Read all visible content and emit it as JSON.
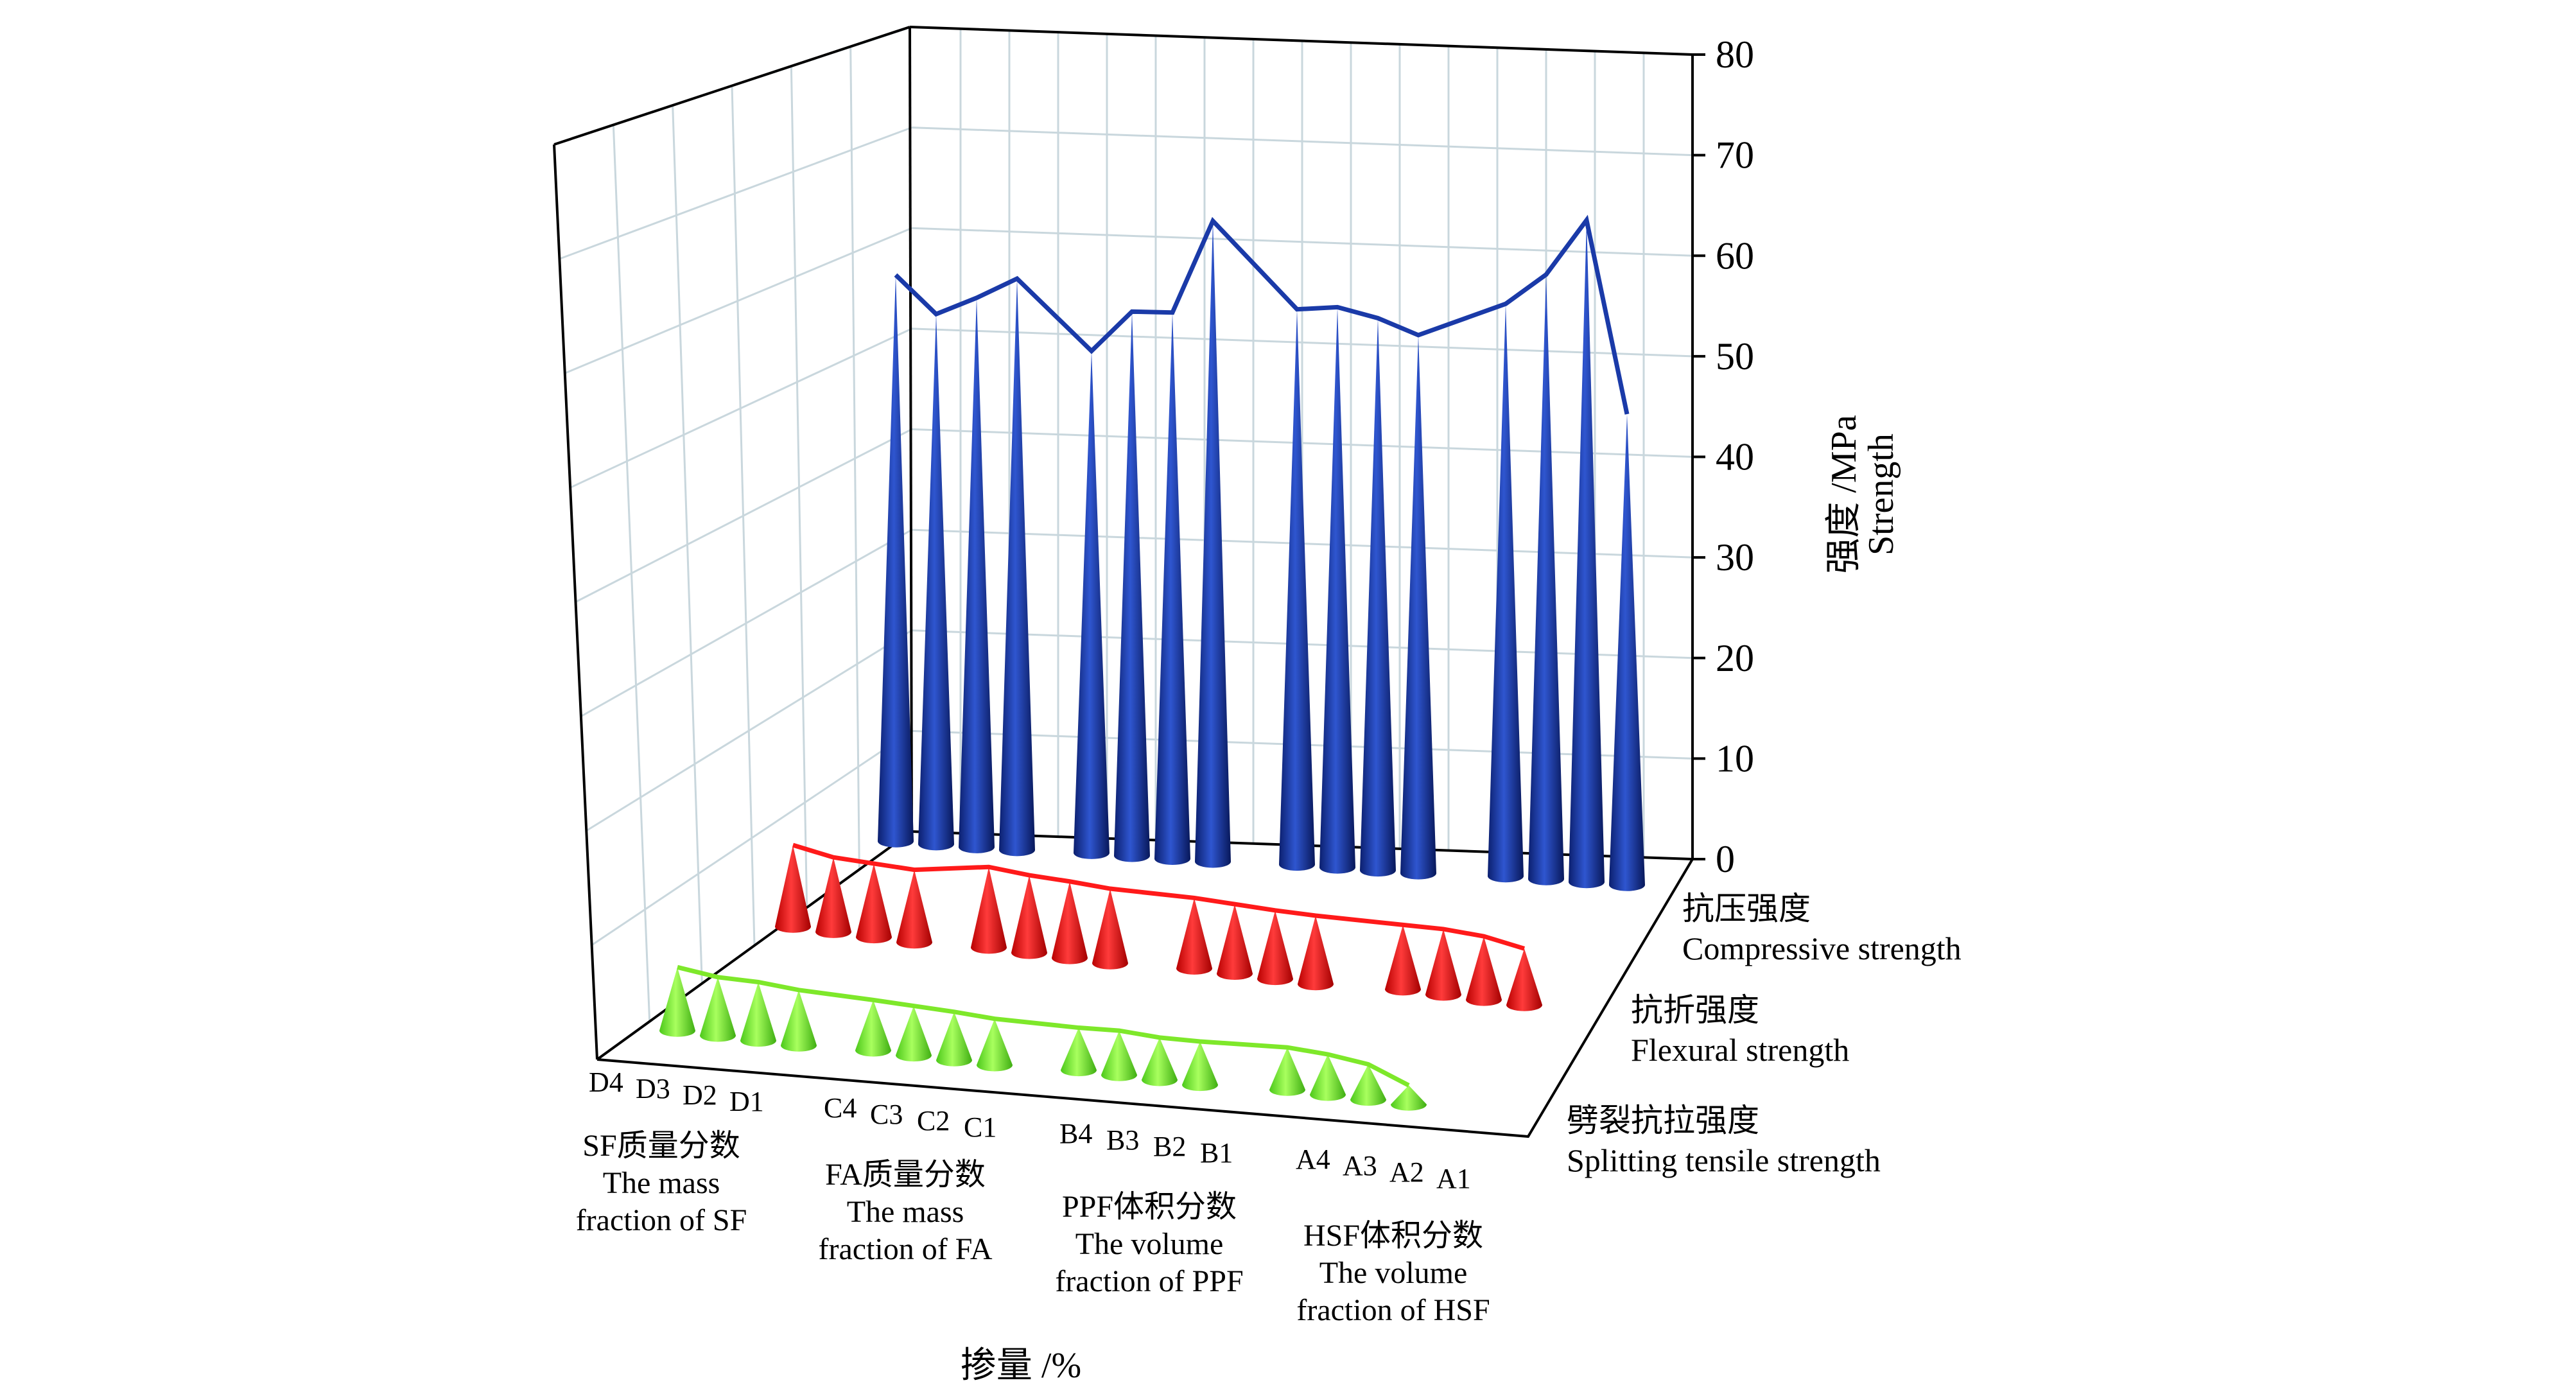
{
  "chart_data": {
    "type": "3d-cone-line",
    "categories": [
      "D4",
      "D3",
      "D2",
      "D1",
      "C4",
      "C3",
      "C2",
      "C1",
      "B4",
      "B3",
      "B2",
      "B1",
      "A4",
      "A3",
      "A2",
      "A1"
    ],
    "groups": [
      {
        "label_cn": "SF质量分数",
        "label_en1": "The mass",
        "label_en2": "fraction of SF"
      },
      {
        "label_cn": "FA质量分数",
        "label_en1": "The mass",
        "label_en2": "fraction of FA"
      },
      {
        "label_cn": "PPF体积分数",
        "label_en1": "The volume",
        "label_en2": "fraction of PPF"
      },
      {
        "label_cn": "HSF体积分数",
        "label_en1": "The volume",
        "label_en2": "fraction of HSF"
      }
    ],
    "xlabel": "掺量 /%",
    "zlabel_cn": "强度 /MPa",
    "zlabel_en": "Strength",
    "zlim": [
      0,
      80
    ],
    "zticks": [
      "0",
      "10",
      "20",
      "30",
      "40",
      "50",
      "60",
      "70",
      "80"
    ],
    "series": [
      {
        "name_cn": "抗压强度",
        "name_en": "Compressive strength",
        "color": "#1a3aa8",
        "values": [
          56.3,
          52.7,
          54.6,
          56.8,
          49.9,
          54.1,
          54.3,
          63.7,
          55.2,
          55.7,
          54.9,
          53.5,
          56.9,
          60.1,
          65.8,
          46.8
        ]
      },
      {
        "name_cn": "抗折强度",
        "name_en": "Flexural strength",
        "color": "#ff1a1a",
        "values": [
          8.1,
          7.4,
          7.3,
          7.2,
          8.0,
          7.7,
          7.6,
          7.4,
          7.0,
          6.9,
          6.8,
          6.8,
          6.4,
          6.5,
          6.3,
          5.6
        ]
      },
      {
        "name_cn": "劈裂抗拉强度",
        "name_en": "Splitting tensile strength",
        "color": "#7ee82a",
        "values": [
          6.3,
          5.8,
          5.8,
          5.5,
          5.0,
          4.9,
          4.8,
          4.6,
          4.2,
          4.4,
          4.2,
          4.3,
          4.2,
          4.0,
          3.5,
          1.9
        ]
      }
    ]
  }
}
